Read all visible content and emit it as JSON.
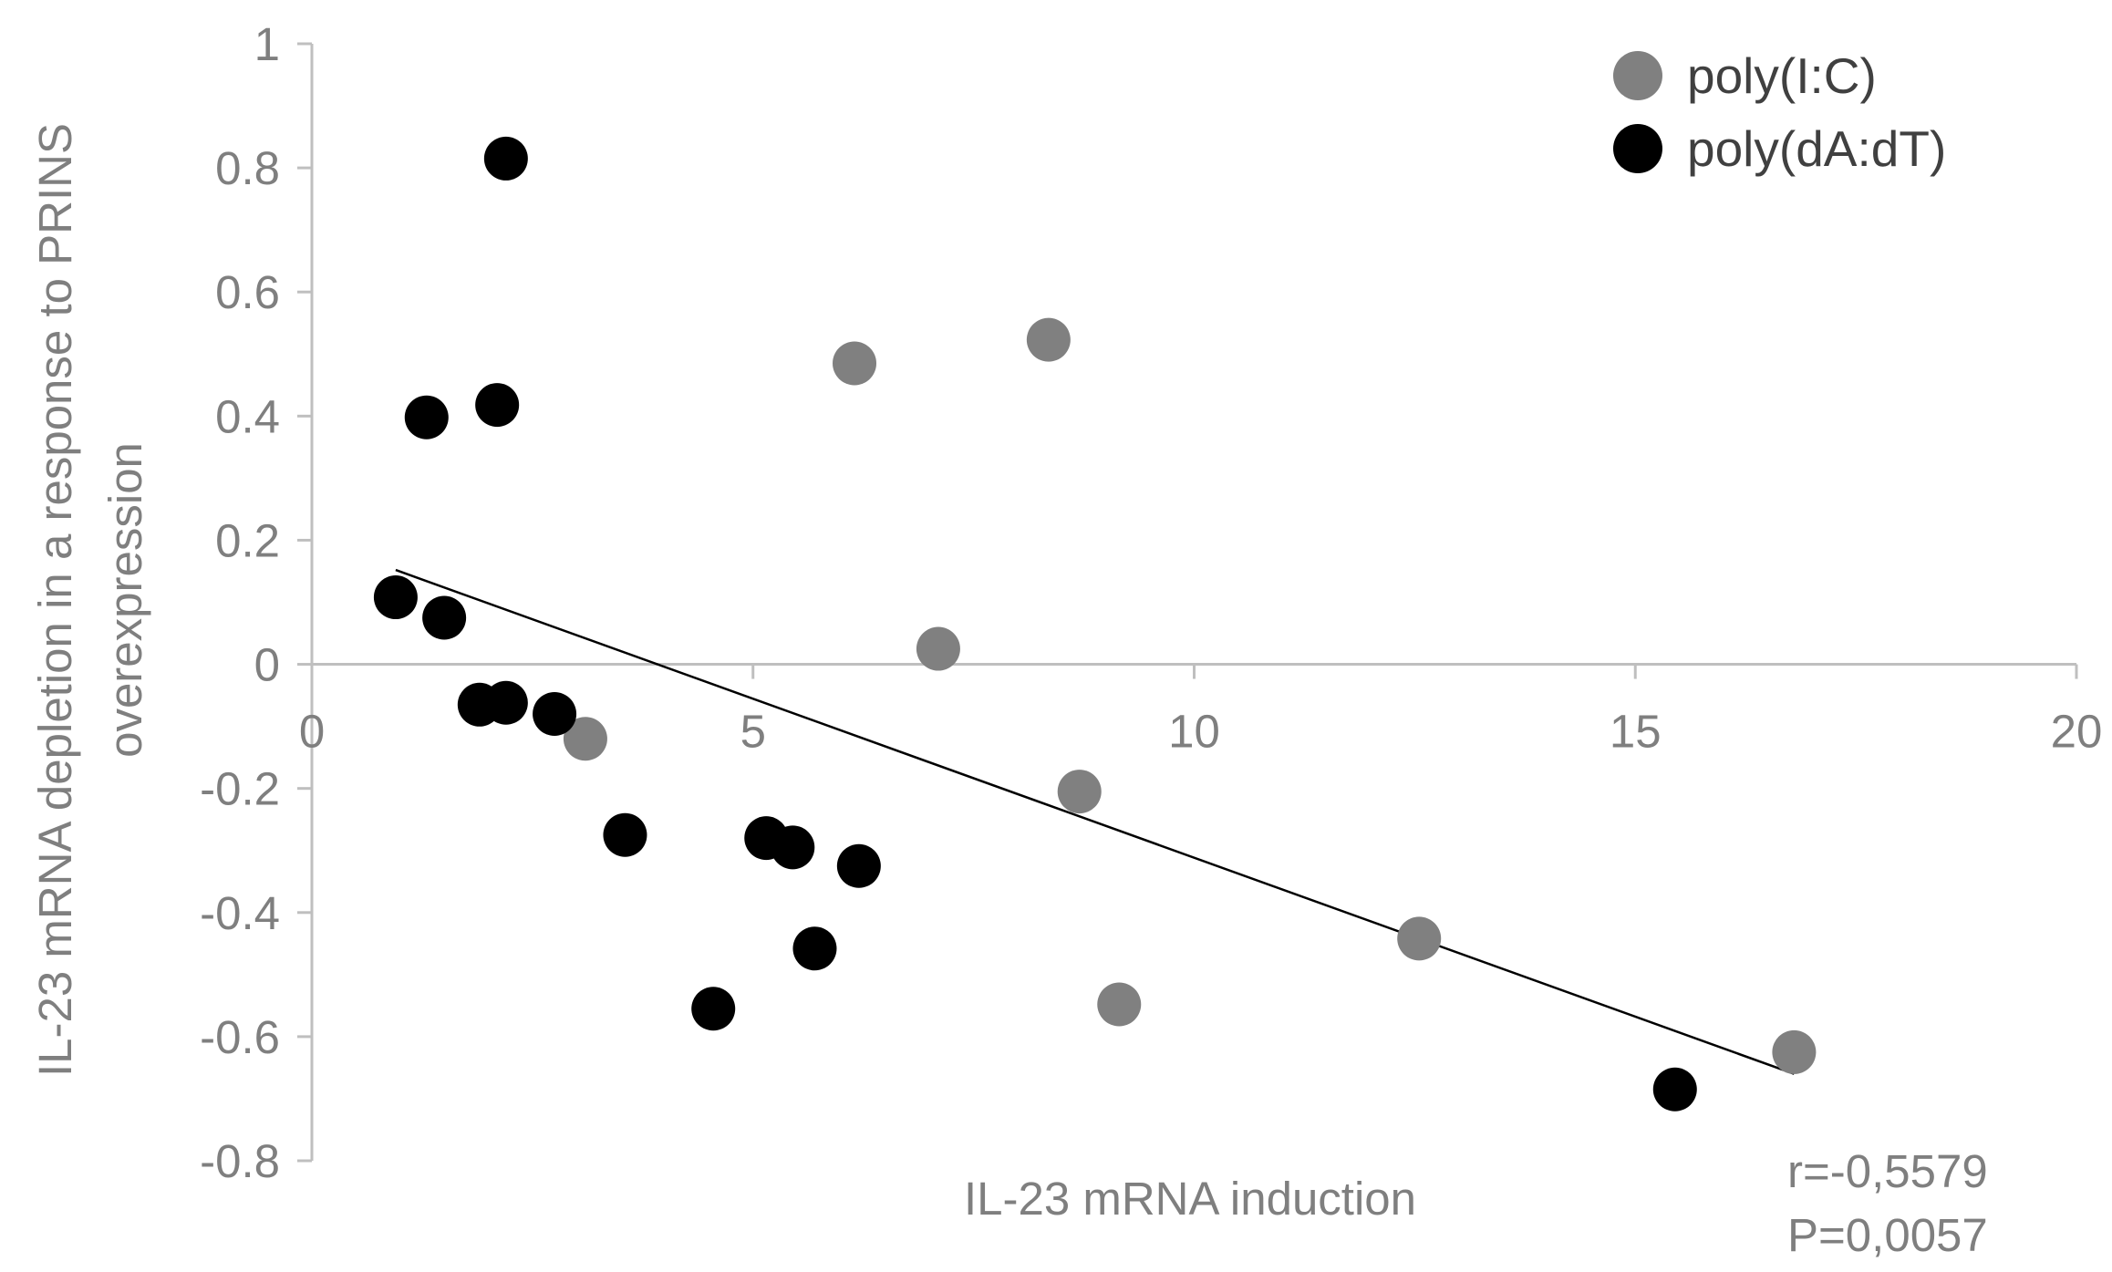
{
  "chart_data": {
    "type": "scatter",
    "title": "",
    "xlabel": "IL-23 mRNA induction",
    "ylabel_lines": [
      "IL-23 mRNA depletion in a response to PRINS",
      "overexpression"
    ],
    "xlim": [
      0,
      20
    ],
    "ylim": [
      -0.8,
      1
    ],
    "x_ticks": [
      0,
      5,
      10,
      15,
      20
    ],
    "x_tick_labels": [
      "0",
      "5",
      "10",
      "15",
      "20"
    ],
    "y_ticks": [
      1,
      0.8,
      0.6,
      0.4,
      0.2,
      0,
      -0.2,
      -0.4,
      -0.6,
      -0.8
    ],
    "y_tick_labels": [
      "1",
      "0.8",
      "0.6",
      "0.4",
      "0.2",
      "0",
      "-0.2",
      "-0.4",
      "-0.6",
      "-0.8"
    ],
    "grid": false,
    "legend_position": "top-right",
    "series": [
      {
        "name": "poly(I:C)",
        "color": "#808080",
        "points": [
          {
            "x": 3.1,
            "y": -0.12
          },
          {
            "x": 6.15,
            "y": 0.485
          },
          {
            "x": 7.1,
            "y": 0.025
          },
          {
            "x": 8.35,
            "y": 0.523
          },
          {
            "x": 8.7,
            "y": -0.205
          },
          {
            "x": 9.15,
            "y": -0.548
          },
          {
            "x": 12.55,
            "y": -0.442
          },
          {
            "x": 16.8,
            "y": -0.625
          }
        ]
      },
      {
        "name": "poly(dA:dT)",
        "color": "#000000",
        "points": [
          {
            "x": 0.95,
            "y": 0.108
          },
          {
            "x": 1.3,
            "y": 0.398
          },
          {
            "x": 1.5,
            "y": 0.075
          },
          {
            "x": 1.9,
            "y": -0.065
          },
          {
            "x": 2.1,
            "y": 0.418
          },
          {
            "x": 2.2,
            "y": -0.062
          },
          {
            "x": 2.2,
            "y": 0.815
          },
          {
            "x": 2.75,
            "y": -0.08
          },
          {
            "x": 3.55,
            "y": -0.275
          },
          {
            "x": 4.55,
            "y": -0.555
          },
          {
            "x": 5.15,
            "y": -0.28
          },
          {
            "x": 5.45,
            "y": -0.295
          },
          {
            "x": 5.7,
            "y": -0.458
          },
          {
            "x": 6.2,
            "y": -0.325
          },
          {
            "x": 15.45,
            "y": -0.685
          }
        ]
      }
    ],
    "trendline": {
      "x1": 0.95,
      "y1": 0.152,
      "x2": 16.8,
      "y2": -0.66,
      "color": "#000000"
    },
    "annotations": [
      "r=-0,5579",
      "P=0,0057"
    ]
  }
}
